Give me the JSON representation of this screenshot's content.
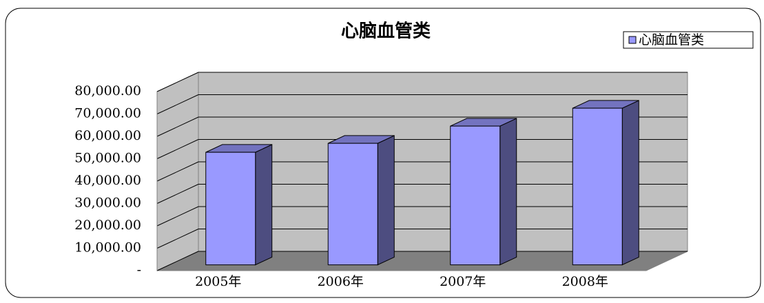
{
  "chart_data": {
    "type": "bar3d",
    "title": "心脑血管类",
    "categories": [
      "2005年",
      "2006年",
      "2007年",
      "2008年"
    ],
    "series": [
      {
        "name": "心脑血管类",
        "color": "#9999ff",
        "values": [
          50300,
          54300,
          62000,
          70000
        ]
      }
    ],
    "ylim": [
      0,
      80000
    ],
    "yticks": [
      {
        "value": 0,
        "label": "-"
      },
      {
        "value": 10000,
        "label": "10,000.00"
      },
      {
        "value": 20000,
        "label": "20,000.00"
      },
      {
        "value": 30000,
        "label": "30,000.00"
      },
      {
        "value": 40000,
        "label": "40,000.00"
      },
      {
        "value": 50000,
        "label": "50,000.00"
      },
      {
        "value": 60000,
        "label": "60,000.00"
      },
      {
        "value": 70000,
        "label": "70,000.00"
      },
      {
        "value": 80000,
        "label": "80,000.00"
      }
    ],
    "grid": true,
    "legend": "top-right"
  }
}
